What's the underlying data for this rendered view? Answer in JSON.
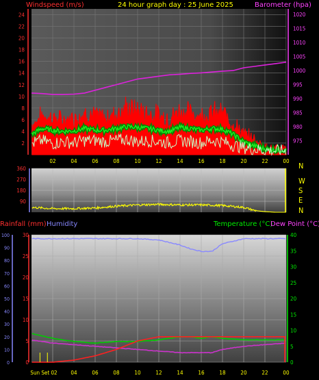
{
  "header": {
    "left_label": "Windspeed (m/s)",
    "title": "24 hour graph day : 25 June 2025",
    "right_label": "Barometer (hpa)"
  },
  "colors": {
    "windspeed": "#ff0000",
    "gust_avg": "#00cc00",
    "wind_avg": "#c8ffc8",
    "barometer": "#dd22dd",
    "direction": "#ffff00",
    "rainfall": "#ff2020",
    "humidity": "#8888ff",
    "temperature": "#00cc00",
    "dewpoint": "#cc33cc",
    "title": "#ffff00",
    "axis_left": "#ff4040",
    "axis_right": "#ff44ff"
  },
  "time_ticks": [
    "02",
    "04",
    "06",
    "08",
    "10",
    "12",
    "14",
    "16",
    "18",
    "20",
    "22",
    "00"
  ],
  "bottom_time_ticks": [
    "Sun Set 02",
    "04",
    "06",
    "08",
    "10",
    "12",
    "14",
    "16",
    "18",
    "20",
    "22",
    "00"
  ],
  "chart_data": [
    {
      "type": "line",
      "name": "wind_and_pressure",
      "title": "24 hour graph day : 25 June 2025",
      "ylabel": "Windspeed (m/s)",
      "ylabel_right": "Barometer (hpa)",
      "ylim": [
        0,
        25
      ],
      "ylim_right": [
        970,
        1022
      ],
      "yticks": [
        2,
        4,
        6,
        8,
        10,
        12,
        14,
        16,
        18,
        20,
        22,
        24
      ],
      "yticks_right": [
        975,
        980,
        985,
        990,
        995,
        1000,
        1005,
        1010,
        1015,
        1020
      ],
      "x_hours": [
        0,
        1,
        2,
        3,
        4,
        5,
        6,
        7,
        8,
        9,
        10,
        11,
        12,
        13,
        14,
        15,
        16,
        17,
        18,
        19,
        20,
        21,
        22,
        23,
        24
      ],
      "series": [
        {
          "key": "windspeed_max",
          "values": [
            5.5,
            7.5,
            7,
            6.5,
            7,
            8,
            7.5,
            7,
            8,
            9,
            8.5,
            8,
            7.5,
            7,
            8.5,
            8,
            7.5,
            8,
            8,
            6,
            4,
            3,
            1.5,
            1,
            1.5
          ]
        },
        {
          "key": "windspeed_avg",
          "values": [
            3.5,
            4.5,
            4.2,
            4,
            4.1,
            4.5,
            4.2,
            4.2,
            4.5,
            4.8,
            4.7,
            4.5,
            4.2,
            4,
            4.7,
            4.5,
            4.2,
            4.5,
            4.4,
            3.5,
            2.2,
            1.5,
            1,
            0.8,
            0.8
          ]
        },
        {
          "key": "wind_low",
          "values": [
            1.5,
            2,
            1.5,
            1.8,
            1.6,
            2,
            2,
            1.8,
            2,
            2.2,
            1.8,
            2,
            1.8,
            1.6,
            2,
            1.8,
            1.6,
            2,
            1.8,
            1.2,
            0.8,
            0.5,
            0.3,
            0.2,
            0.3
          ]
        },
        {
          "key": "barometer",
          "values": [
            992,
            991.8,
            991.5,
            991.5,
            991.6,
            992,
            993,
            994,
            995,
            996,
            997,
            997.5,
            998,
            998.5,
            998.7,
            999,
            999.2,
            999.5,
            999.8,
            1000,
            1001,
            1001.5,
            1002,
            1002.5,
            1003
          ]
        }
      ]
    },
    {
      "type": "line",
      "name": "wind_direction",
      "ylim": [
        0,
        360
      ],
      "yticks": [
        90,
        180,
        270,
        360
      ],
      "yticks_right": [
        "N",
        "W",
        "S",
        "E",
        "N"
      ],
      "x_hours": [
        0,
        2,
        4,
        6,
        8,
        10,
        12,
        14,
        16,
        18,
        20,
        21,
        22,
        23,
        24
      ],
      "values": [
        40,
        30,
        30,
        35,
        50,
        60,
        65,
        60,
        60,
        55,
        40,
        15,
        5,
        0,
        0
      ]
    },
    {
      "type": "line",
      "name": "rain_humidity_temp",
      "ylabel": "Rainfall (mm)",
      "ylabel_2": "Humidity",
      "ylabel_right": "Temperature (°C)",
      "ylabel_right_2": "Dew Point (°C)",
      "ylim": [
        0,
        30
      ],
      "ylim_humidity": [
        0,
        100
      ],
      "ylim_right": [
        0,
        40
      ],
      "yticks": [
        0,
        5,
        10,
        15,
        20,
        25,
        30
      ],
      "yticks_humidity": [
        0,
        10,
        20,
        30,
        40,
        50,
        60,
        70,
        80,
        90,
        100
      ],
      "yticks_right": [
        0,
        5,
        10,
        15,
        20,
        25,
        30,
        35,
        40
      ],
      "x_hours": [
        0,
        2,
        4,
        6,
        8,
        10,
        12,
        14,
        15,
        16,
        17,
        18,
        20,
        22,
        24
      ],
      "series": [
        {
          "key": "rainfall",
          "values": [
            0,
            0,
            0.5,
            1.5,
            3,
            5,
            6,
            6,
            6,
            6,
            6,
            6,
            6,
            6,
            6
          ]
        },
        {
          "key": "humidity",
          "values": [
            97,
            97,
            97,
            97,
            97,
            97,
            96,
            92,
            89,
            87,
            87,
            93,
            97,
            97,
            97
          ]
        },
        {
          "key": "temperature",
          "values": [
            9,
            7.5,
            6.5,
            6,
            6.5,
            6.5,
            7,
            8,
            8,
            7.5,
            8,
            7.5,
            7,
            7,
            7
          ]
        },
        {
          "key": "dewpoint",
          "values": [
            7,
            6,
            5.5,
            5,
            4.5,
            4,
            3.5,
            3,
            3,
            3,
            3,
            4,
            5,
            5.5,
            6
          ]
        }
      ],
      "sunset_markers_hours": [
        0.8,
        1.5
      ]
    }
  ]
}
